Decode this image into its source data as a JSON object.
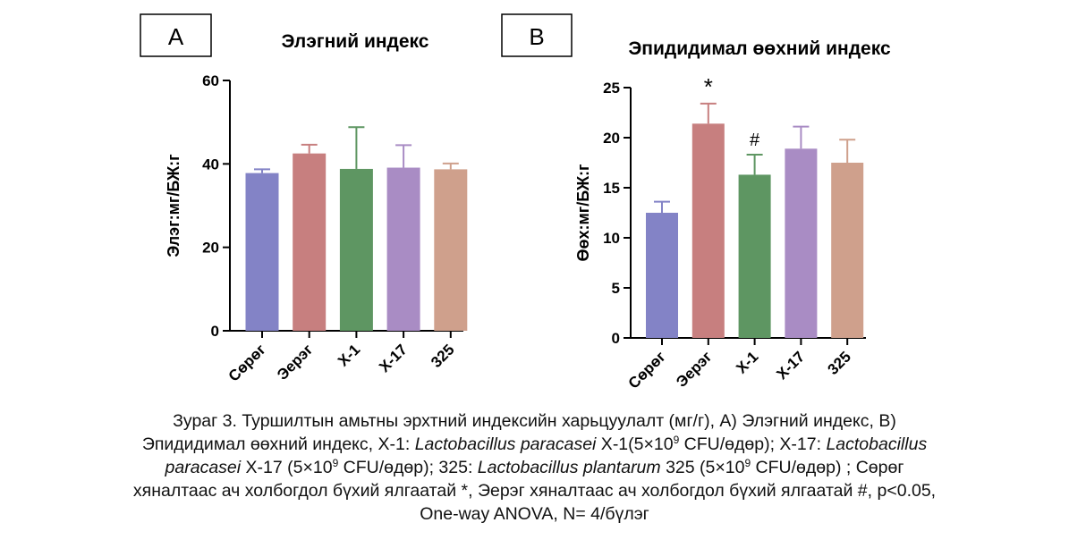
{
  "chart_data": [
    {
      "type": "bar",
      "panel_label": "A",
      "title": "Элэгний индекс",
      "ylabel": "Элэг:мг/БЖ:г",
      "xlabel": "",
      "ylim": [
        0,
        60
      ],
      "yticks": [
        0,
        20,
        40,
        60
      ],
      "categories": [
        "Сөрөг",
        "Эерэг",
        "X-1",
        "X-17",
        "325"
      ],
      "values": [
        37.8,
        42.5,
        38.8,
        39.1,
        38.7
      ],
      "errors": [
        0.9,
        2.1,
        10.0,
        5.4,
        1.4
      ],
      "colors": [
        "#8383c6",
        "#c77f7f",
        "#5e9662",
        "#a98cc4",
        "#cfa08c"
      ],
      "annotations": [
        "",
        "",
        "",
        "",
        ""
      ],
      "grid": false,
      "legend": "none"
    },
    {
      "type": "bar",
      "panel_label": "B",
      "title": "Эпидидимал өөхний индекс",
      "ylabel": "Өөх:мг/БЖ:г",
      "xlabel": "",
      "ylim": [
        0,
        25
      ],
      "yticks": [
        0,
        5,
        10,
        15,
        20,
        25
      ],
      "categories": [
        "Сөрөг",
        "Эерэг",
        "X-1",
        "X-17",
        "325"
      ],
      "values": [
        12.5,
        21.4,
        16.3,
        18.9,
        17.5
      ],
      "errors": [
        1.1,
        2.0,
        2.0,
        2.2,
        2.3
      ],
      "colors": [
        "#8383c6",
        "#c77f7f",
        "#5e9662",
        "#a98cc4",
        "#cfa08c"
      ],
      "annotations": [
        "",
        "*",
        "#",
        "",
        ""
      ],
      "grid": false,
      "legend": "none"
    }
  ],
  "caption": {
    "line1": "Зураг 3. Туршилтын амьтны эрхтний индексийн харьцуулалт (мг/г), A) Элэгний индекс, B)",
    "line2_a": "Эпидидимал өөхний индекс, X-1: ",
    "line2_b": "Lactobacillus paracasei",
    "line2_c": " X-1(5×10",
    "line2_d": "9",
    "line2_e": " CFU/өдөр); X-17: ",
    "line2_f": "Lactobacillus",
    "line3_a": "paracasei",
    "line3_b": " X-17 (5×10",
    "line3_c": "9",
    "line3_d": " CFU/өдөр); 325: ",
    "line3_e": "Lactobacillus plantarum",
    "line3_f": " 325 (5×10",
    "line3_g": "9",
    "line3_h": " CFU/өдөр) ; Сөрөг",
    "line4": "хяналтаас ач холбогдол бүхий ялгаатай *, Эерэг хяналтаас ач холбогдол бүхий ялгаатай  #, p<0.05,",
    "line5": "One-way ANOVA, N= 4/бүлэг"
  }
}
